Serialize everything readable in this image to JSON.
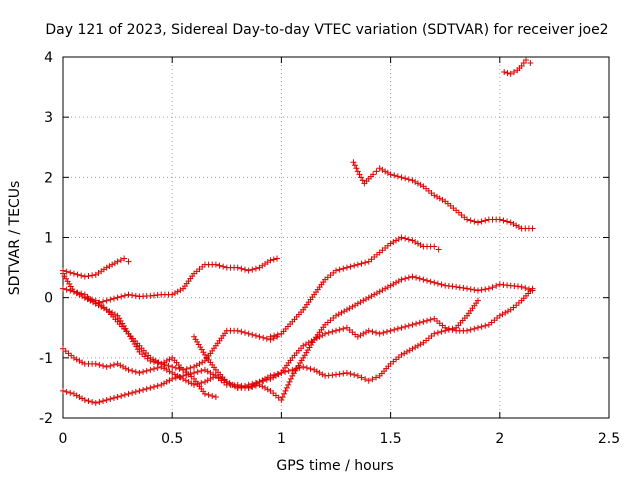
{
  "chart_data": {
    "type": "scatter",
    "title": "Day 121 of 2023, Sidereal Day-to-day VTEC variation (SDTVAR) for receiver joe2",
    "xlabel": "GPS time / hours",
    "ylabel": "SDTVAR / TECUs",
    "xlim": [
      0,
      2.5
    ],
    "ylim": [
      -2,
      4
    ],
    "xticks": [
      0,
      0.5,
      1,
      1.5,
      2,
      2.5
    ],
    "yticks": [
      -2,
      -1,
      0,
      1,
      2,
      3,
      4
    ],
    "xtick_labels": [
      "0",
      "0.5",
      "1",
      "1.5",
      "2",
      "2.5"
    ],
    "ytick_labels": [
      "-2",
      "-1",
      "0",
      "1",
      "2",
      "3",
      "4"
    ],
    "grid": true,
    "marker": "+",
    "color": "#e00000",
    "series": [
      {
        "name": "s1",
        "x": [
          0.0,
          0.05,
          0.1,
          0.15,
          0.2,
          0.25,
          0.28,
          0.3
        ],
        "y": [
          0.45,
          0.4,
          0.35,
          0.38,
          0.5,
          0.6,
          0.65,
          0.6
        ]
      },
      {
        "name": "s2",
        "x": [
          0.0,
          0.05,
          0.1,
          0.15,
          0.2,
          0.25,
          0.3,
          0.35,
          0.4,
          0.45,
          0.5,
          0.55,
          0.6,
          0.65,
          0.7,
          0.75,
          0.8,
          0.85,
          0.9,
          0.95,
          0.98
        ],
        "y": [
          0.15,
          0.1,
          0.05,
          -0.1,
          -0.05,
          0.0,
          0.05,
          0.02,
          0.03,
          0.05,
          0.05,
          0.15,
          0.4,
          0.55,
          0.55,
          0.5,
          0.5,
          0.45,
          0.5,
          0.62,
          0.65
        ]
      },
      {
        "name": "s3",
        "x": [
          0.0,
          0.05,
          0.1,
          0.15,
          0.2,
          0.25,
          0.3,
          0.35,
          0.4,
          0.45,
          0.5,
          0.55,
          0.6,
          0.65,
          0.7
        ],
        "y": [
          0.4,
          0.1,
          0.0,
          -0.05,
          -0.2,
          -0.3,
          -0.6,
          -0.9,
          -1.05,
          -1.1,
          -1.0,
          -1.2,
          -1.35,
          -1.6,
          -1.65
        ]
      },
      {
        "name": "s4",
        "x": [
          0.1,
          0.15,
          0.2,
          0.25,
          0.3,
          0.35,
          0.4,
          0.45,
          0.5,
          0.55,
          0.6,
          0.65,
          0.7,
          0.75,
          0.8,
          0.85,
          0.9,
          0.95,
          0.98
        ],
        "y": [
          0.0,
          -0.1,
          -0.2,
          -0.4,
          -0.6,
          -0.8,
          -1.0,
          -1.1,
          -1.15,
          -1.2,
          -1.15,
          -1.05,
          -0.8,
          -0.55,
          -0.55,
          -0.6,
          -0.65,
          -0.7,
          -0.65
        ]
      },
      {
        "name": "s5",
        "x": [
          0.0,
          0.05,
          0.1,
          0.15,
          0.2,
          0.25,
          0.3,
          0.35,
          0.4,
          0.45,
          0.5,
          0.55,
          0.6,
          0.65,
          0.7,
          0.75,
          0.8,
          0.85,
          0.9,
          0.95,
          1.0,
          1.05,
          1.1,
          1.15,
          1.2,
          1.25,
          1.3,
          1.35,
          1.4,
          1.45,
          1.5,
          1.55,
          1.6,
          1.65,
          1.7,
          1.75,
          1.8,
          1.85,
          1.9
        ],
        "y": [
          -0.85,
          -1.0,
          -1.1,
          -1.1,
          -1.15,
          -1.1,
          -1.2,
          -1.25,
          -1.2,
          -1.15,
          -1.25,
          -1.35,
          -1.45,
          -1.4,
          -1.3,
          -1.45,
          -1.45,
          -1.5,
          -1.4,
          -1.35,
          -1.25,
          -1.2,
          -1.15,
          -1.2,
          -1.3,
          -1.28,
          -1.25,
          -1.3,
          -1.38,
          -1.3,
          -1.1,
          -0.95,
          -0.85,
          -0.75,
          -0.6,
          -0.55,
          -0.5,
          -0.3,
          -0.05
        ]
      },
      {
        "name": "s6",
        "x": [
          0.0,
          0.05,
          0.1,
          0.15,
          0.2,
          0.25,
          0.3,
          0.35,
          0.4,
          0.45,
          0.5,
          0.55,
          0.6,
          0.65,
          0.7,
          0.75,
          0.8,
          0.85,
          0.9,
          0.95,
          1.0,
          1.05,
          1.1,
          1.15,
          1.2,
          1.25,
          1.3,
          1.35,
          1.4,
          1.45,
          1.5,
          1.55,
          1.6,
          1.65,
          1.7,
          1.75,
          1.8,
          1.85,
          1.9,
          1.95,
          2.0,
          2.05,
          2.1,
          2.15
        ],
        "y": [
          -1.55,
          -1.6,
          -1.7,
          -1.75,
          -1.7,
          -1.65,
          -1.6,
          -1.55,
          -1.5,
          -1.45,
          -1.35,
          -1.3,
          -1.25,
          -1.2,
          -1.3,
          -1.4,
          -1.5,
          -1.45,
          -1.4,
          -1.3,
          -1.25,
          -1.0,
          -0.8,
          -0.7,
          -0.6,
          -0.55,
          -0.5,
          -0.65,
          -0.55,
          -0.6,
          -0.55,
          -0.5,
          -0.45,
          -0.4,
          -0.35,
          -0.5,
          -0.55,
          -0.55,
          -0.5,
          -0.45,
          -0.3,
          -0.2,
          -0.05,
          0.15
        ]
      },
      {
        "name": "s7",
        "x": [
          0.6,
          0.65,
          0.7,
          0.75,
          0.8,
          0.85,
          0.9,
          0.95,
          1.0,
          1.05,
          1.1,
          1.15,
          1.2,
          1.25,
          1.3,
          1.35,
          1.4,
          1.45,
          1.5,
          1.55,
          1.6,
          1.65,
          1.7,
          1.75,
          1.8,
          1.85,
          1.9,
          1.95,
          2.0,
          2.05,
          2.1,
          2.15
        ],
        "y": [
          -0.65,
          -0.95,
          -1.2,
          -1.4,
          -1.5,
          -1.5,
          -1.45,
          -1.55,
          -1.7,
          -1.3,
          -1.0,
          -0.7,
          -0.45,
          -0.3,
          -0.2,
          -0.1,
          0.0,
          0.1,
          0.2,
          0.3,
          0.35,
          0.3,
          0.25,
          0.2,
          0.18,
          0.15,
          0.12,
          0.15,
          0.22,
          0.2,
          0.18,
          0.12
        ]
      },
      {
        "name": "s8",
        "x": [
          0.95,
          1.0,
          1.05,
          1.1,
          1.15,
          1.2,
          1.25,
          1.3,
          1.35,
          1.4,
          1.45,
          1.5,
          1.55,
          1.6,
          1.65,
          1.7,
          1.72
        ],
        "y": [
          -0.65,
          -0.6,
          -0.4,
          -0.2,
          0.05,
          0.3,
          0.45,
          0.5,
          0.55,
          0.6,
          0.75,
          0.9,
          1.0,
          0.95,
          0.85,
          0.85,
          0.8
        ]
      },
      {
        "name": "s9",
        "x": [
          1.33,
          1.35,
          1.38,
          1.42,
          1.45,
          1.5,
          1.55,
          1.6,
          1.65,
          1.7,
          1.75,
          1.8,
          1.85,
          1.9,
          1.95,
          2.0,
          2.05,
          2.1,
          2.15
        ],
        "y": [
          2.25,
          2.1,
          1.9,
          2.05,
          2.15,
          2.05,
          2.0,
          1.95,
          1.85,
          1.7,
          1.6,
          1.45,
          1.3,
          1.25,
          1.3,
          1.3,
          1.25,
          1.15,
          1.15
        ]
      },
      {
        "name": "s10",
        "x": [
          2.02,
          2.05,
          2.08,
          2.1,
          2.12,
          2.14
        ],
        "y": [
          3.75,
          3.72,
          3.78,
          3.85,
          3.95,
          3.9
        ]
      }
    ]
  }
}
